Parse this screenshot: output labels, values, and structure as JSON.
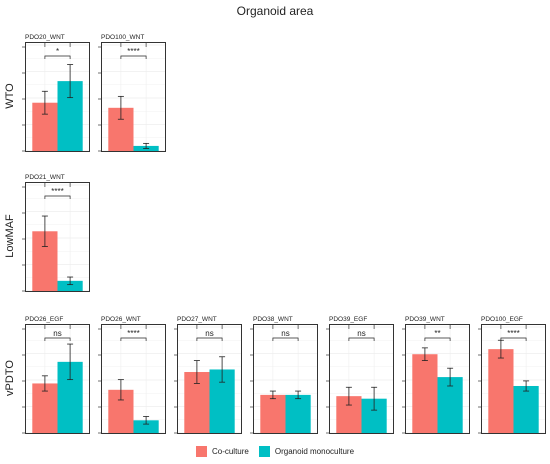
{
  "title": "Organoid area",
  "colors": {
    "co_culture": "#F8766D",
    "organoid_monoculture": "#00BFC4"
  },
  "legend": {
    "items": [
      "Co-culture",
      "Organoid monoculture"
    ]
  },
  "chart_data": {
    "type": "bar",
    "title": "Organoid area",
    "series_names": [
      "Co-culture",
      "Organoid monoculture"
    ],
    "grid": true,
    "legend_position": "bottom",
    "rows": [
      {
        "label": "WTO",
        "panels": [
          {
            "name": "PDO20_WNT",
            "values": [
              0.38,
              0.55
            ],
            "err": [
              0.09,
              0.13
            ],
            "sig": "*"
          },
          {
            "name": "PDO100_WNT",
            "values": [
              0.34,
              0.04
            ],
            "err": [
              0.09,
              0.02
            ],
            "sig": "****"
          }
        ]
      },
      {
        "label": "LowMAF",
        "panels": [
          {
            "name": "PDO21_WNT",
            "values": [
              0.47,
              0.08
            ],
            "err": [
              0.12,
              0.03
            ],
            "sig": "****"
          }
        ]
      },
      {
        "label": "vPDTO",
        "panels": [
          {
            "name": "PDO26_EGF",
            "values": [
              0.39,
              0.56
            ],
            "err": [
              0.06,
              0.14
            ],
            "sig": "ns"
          },
          {
            "name": "PDO26_WNT",
            "values": [
              0.34,
              0.1
            ],
            "err": [
              0.08,
              0.03
            ],
            "sig": "****"
          },
          {
            "name": "PDO27_WNT",
            "values": [
              0.48,
              0.5
            ],
            "err": [
              0.09,
              0.1
            ],
            "sig": "ns"
          },
          {
            "name": "PDO38_WNT",
            "values": [
              0.3,
              0.3
            ],
            "err": [
              0.03,
              0.03
            ],
            "sig": "ns"
          },
          {
            "name": "PDO39_EGF",
            "values": [
              0.29,
              0.27
            ],
            "err": [
              0.07,
              0.09
            ],
            "sig": "ns"
          },
          {
            "name": "PDO39_WNT",
            "values": [
              0.62,
              0.44
            ],
            "err": [
              0.05,
              0.07
            ],
            "sig": "**"
          },
          {
            "name": "PDO100_EGF",
            "values": [
              0.66,
              0.37
            ],
            "err": [
              0.07,
              0.04
            ],
            "sig": "****"
          }
        ]
      }
    ]
  }
}
